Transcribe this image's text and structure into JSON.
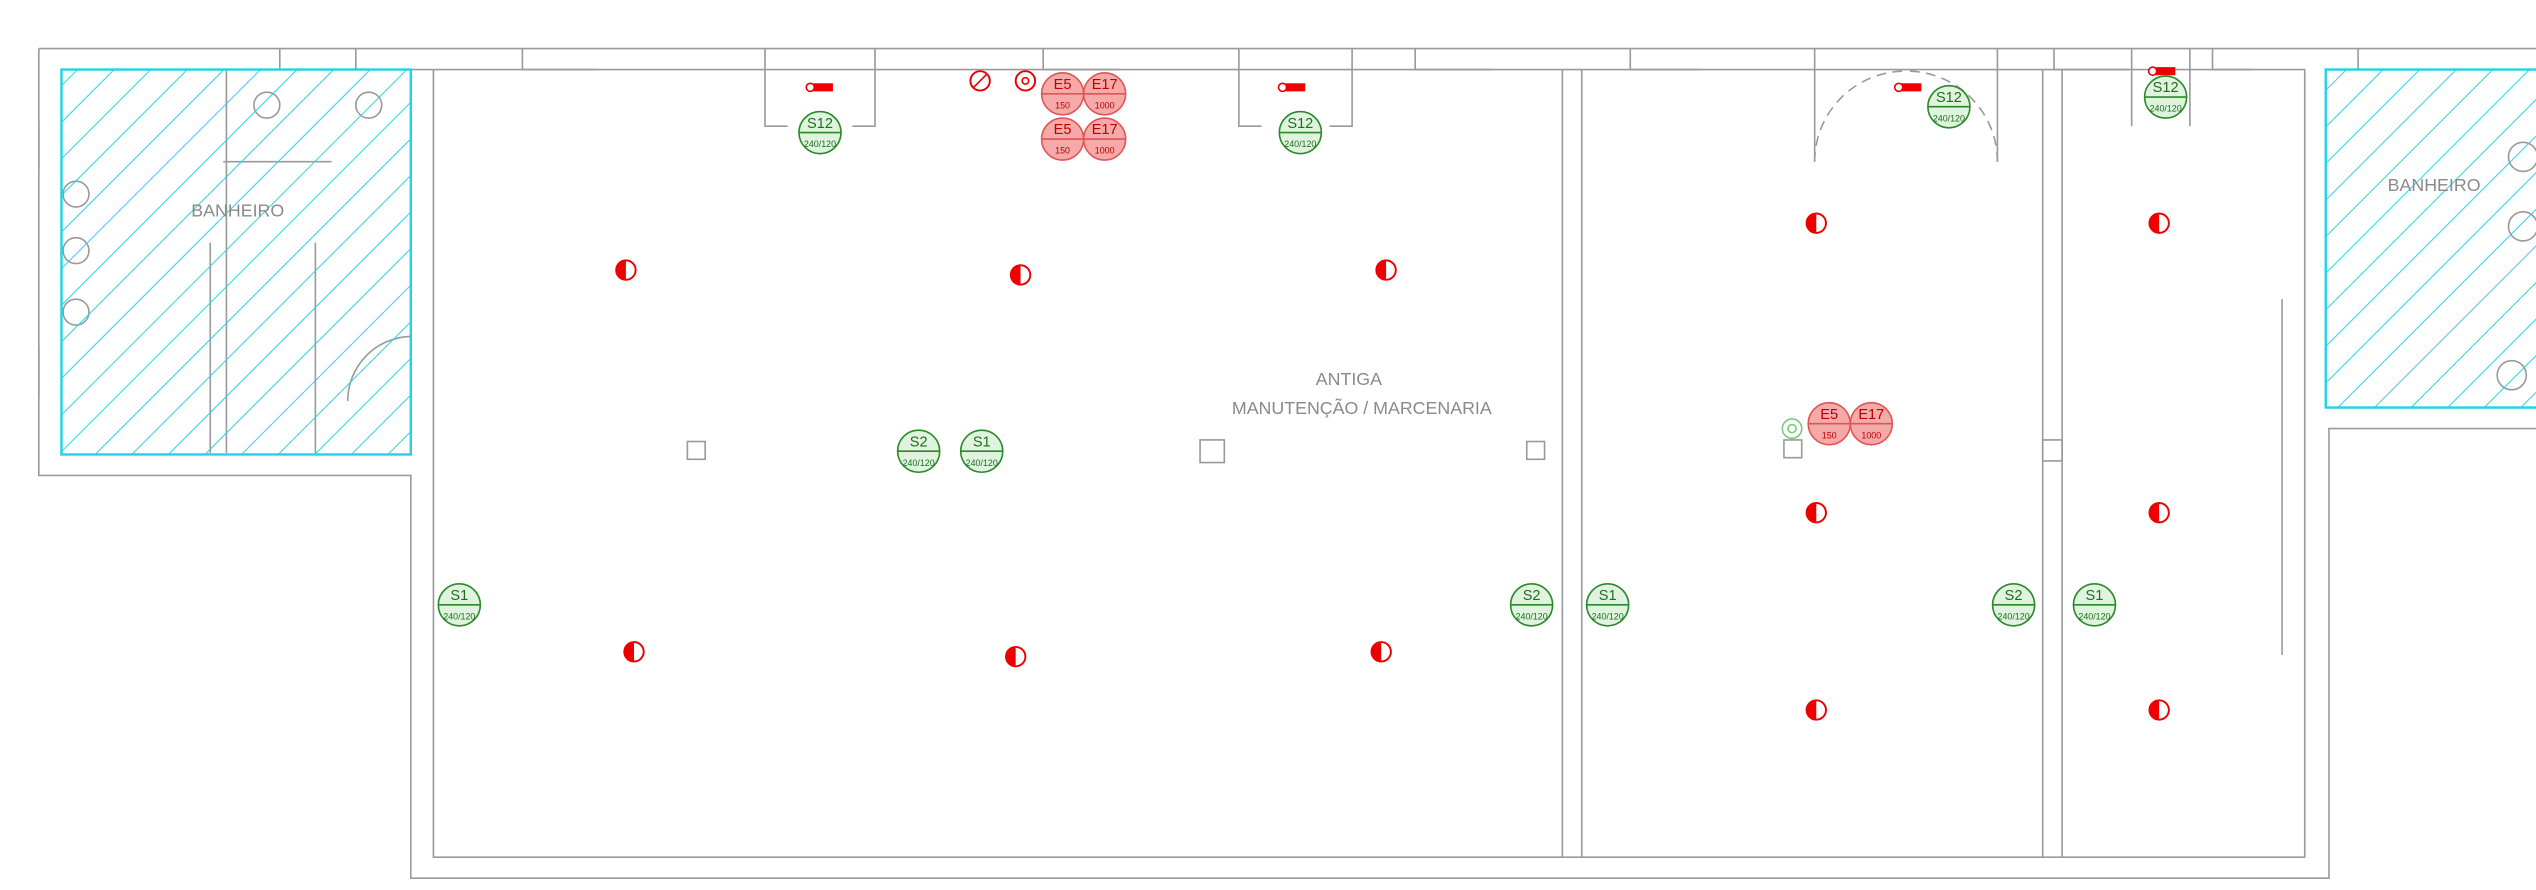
{
  "rooms": [
    {
      "label": "BANHEIRO"
    },
    {
      "label": "ANTIGA",
      "sublabel": "MANUTENÇÃO / MARCENARIA"
    },
    {
      "label": "BANHEIRO"
    }
  ],
  "outlets": [
    {
      "code": "S12",
      "rating": "240/120"
    },
    {
      "code": "S12",
      "rating": "240/120"
    },
    {
      "code": "S12",
      "rating": "240/120"
    },
    {
      "code": "S12",
      "rating": "240/120"
    },
    {
      "code": "S2",
      "rating": "240/120"
    },
    {
      "code": "S1",
      "rating": "240/120"
    },
    {
      "code": "S1",
      "rating": "240/120"
    },
    {
      "code": "S2",
      "rating": "240/120"
    },
    {
      "code": "S1",
      "rating": "240/120"
    },
    {
      "code": "S2",
      "rating": "240/120"
    },
    {
      "code": "S1",
      "rating": "240/120"
    }
  ],
  "emergency": [
    {
      "code": "E5",
      "rating": "150"
    },
    {
      "code": "E17",
      "rating": "1000"
    },
    {
      "code": "E5",
      "rating": "150"
    },
    {
      "code": "E17",
      "rating": "1000"
    },
    {
      "code": "E5",
      "rating": "150"
    },
    {
      "code": "E17",
      "rating": "1000"
    }
  ]
}
